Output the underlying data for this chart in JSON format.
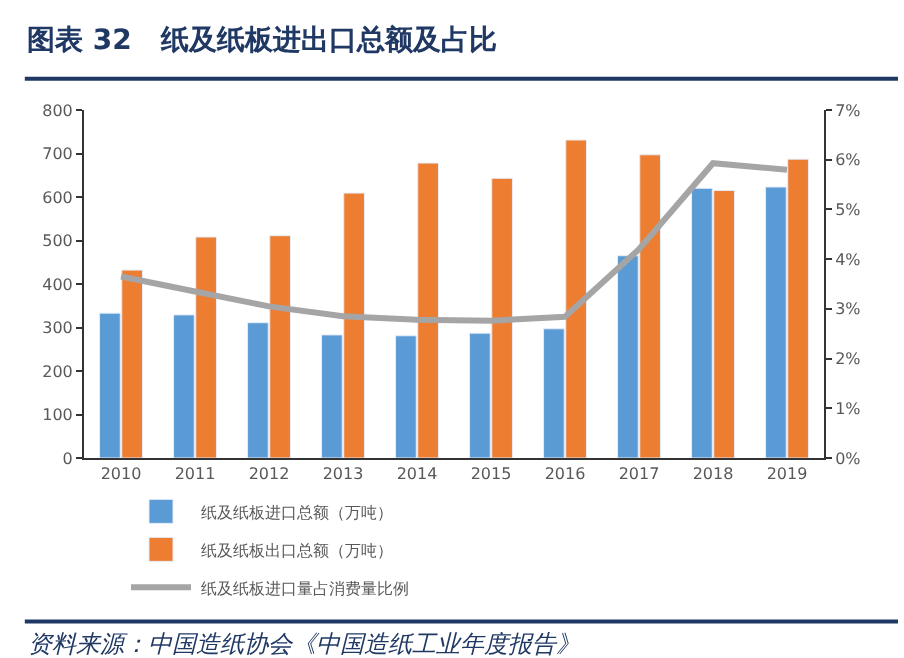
{
  "chart_data": {
    "type": "bar",
    "title": "图表 32   纸及纸板进出口总额及占比",
    "categories": [
      "2010",
      "2011",
      "2012",
      "2013",
      "2014",
      "2015",
      "2016",
      "2017",
      "2018",
      "2019"
    ],
    "series": [
      {
        "name": "纸及纸板进口总额（万吨）",
        "color": "#5b9bd5",
        "values": [
          333,
          329,
          311,
          283,
          281,
          287,
          297,
          465,
          620,
          623
        ]
      },
      {
        "name": "纸及纸板出口总额（万吨）",
        "color": "#ed7d31",
        "values": [
          432,
          508,
          511,
          609,
          678,
          643,
          731,
          697,
          615,
          687
        ]
      },
      {
        "name": "纸及纸板进口量占消费量比例",
        "color": "#a5a5a5",
        "type": "line",
        "axis": "y2",
        "values": [
          3.65,
          3.35,
          3.05,
          2.85,
          2.78,
          2.76,
          2.84,
          4.2,
          5.93,
          5.8
        ]
      }
    ],
    "ylim": [
      0,
      800
    ],
    "yticks": [
      0,
      100,
      200,
      300,
      400,
      500,
      600,
      700,
      800
    ],
    "y2lim": [
      0,
      7
    ],
    "y2ticks": [
      {
        "value": 0,
        "label": "0%"
      },
      {
        "value": 1,
        "label": "1%"
      },
      {
        "value": 2,
        "label": "2%"
      },
      {
        "value": 3,
        "label": "3%"
      },
      {
        "value": 4,
        "label": "4%"
      },
      {
        "value": 5,
        "label": "5%"
      },
      {
        "value": 6,
        "label": "6%"
      },
      {
        "value": 7,
        "label": "7%"
      }
    ],
    "legend": "bottom",
    "marker": "none",
    "line_style": "solid",
    "annotations": [
      "资料来源：中国造纸协会《中国造纸工业年度报告》"
    ]
  }
}
